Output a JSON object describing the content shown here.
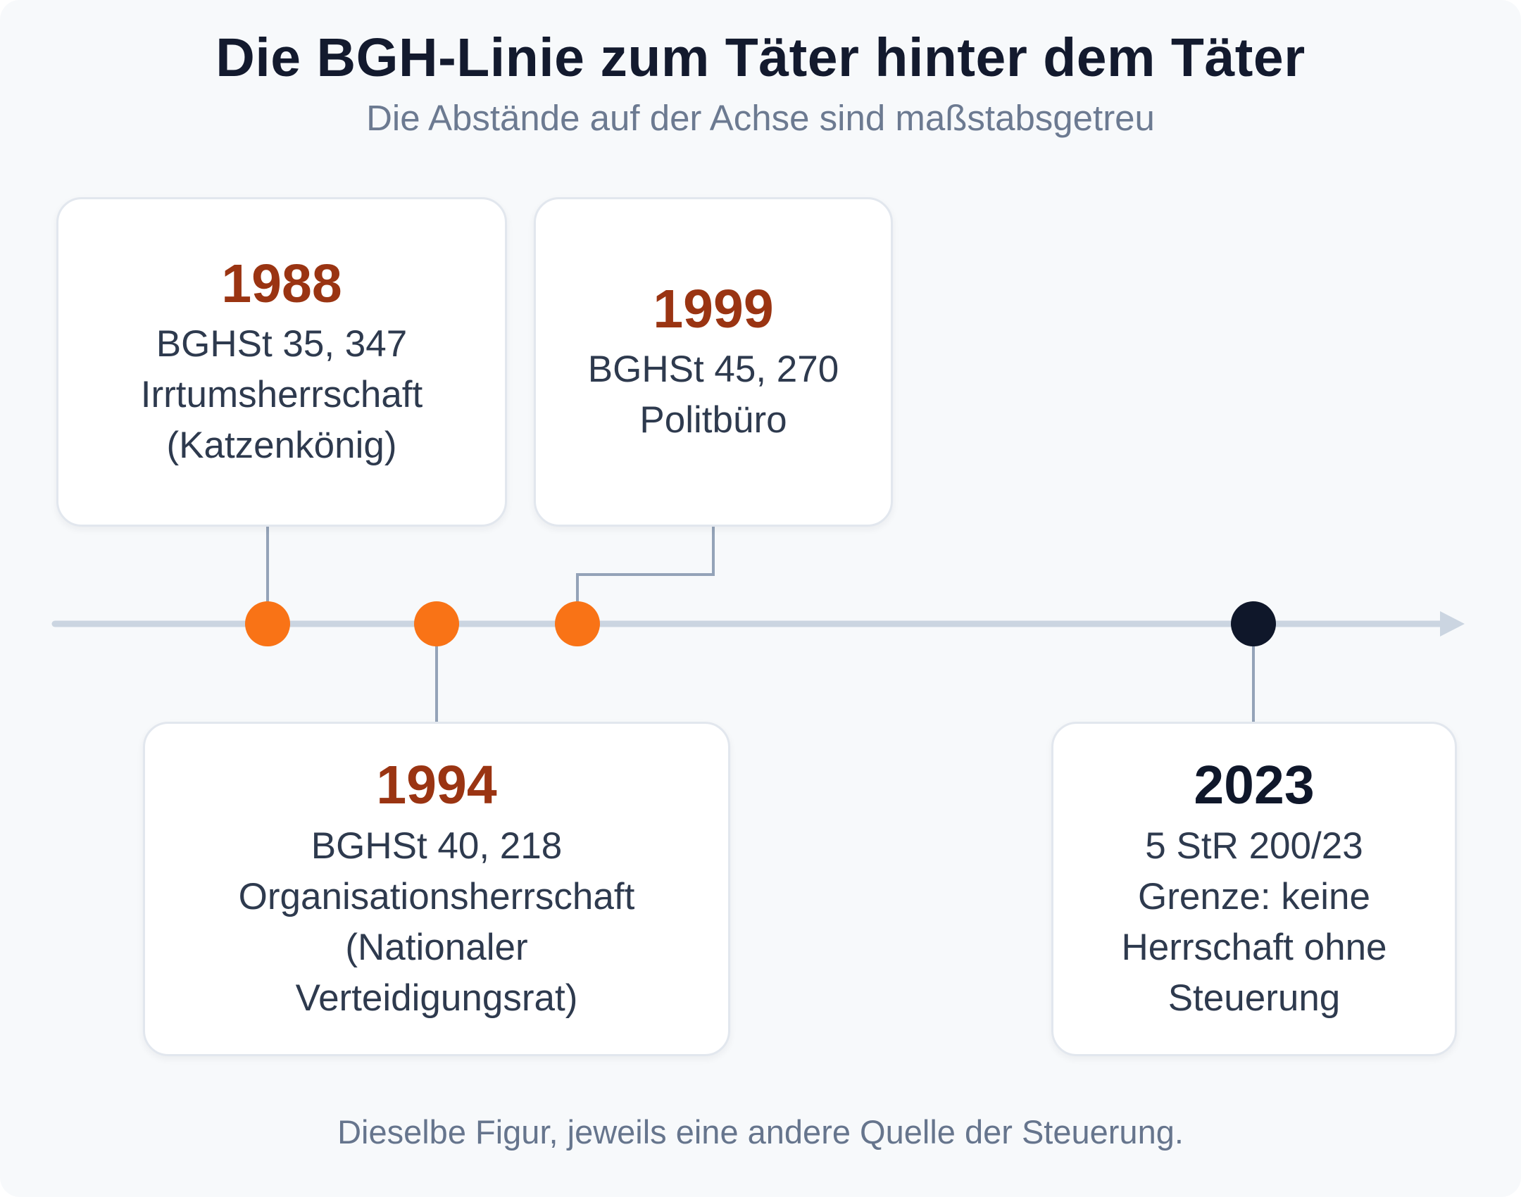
{
  "title": "Die BGH-Linie zum Täter hinter dem Täter",
  "subtitle": "Die Abstände auf der Achse sind maßstabsgetreu",
  "footer": "Dieselbe Figur, jeweils eine andere Quelle der Steuerung.",
  "colors": {
    "accent": "#f97316",
    "year_accent": "#9a3412",
    "final": "#0f172a",
    "axis": "#cbd5e1",
    "connector": "#94a3b8"
  },
  "events": [
    {
      "year": "1988",
      "lines": [
        "BGHSt 35, 347",
        "Irrtumsherrschaft",
        "(Katzenkönig)"
      ],
      "position": "above",
      "highlight": false
    },
    {
      "year": "1994",
      "lines": [
        "BGHSt 40, 218",
        "Organisationsherrschaft",
        "(Nationaler",
        "Verteidigungsrat)"
      ],
      "position": "below",
      "highlight": false
    },
    {
      "year": "1999",
      "lines": [
        "BGHSt 45, 270",
        "Politbüro"
      ],
      "position": "above",
      "highlight": false
    },
    {
      "year": "2023",
      "lines": [
        "5 StR 200/23",
        "Grenze: keine",
        "Herrschaft ohne",
        "Steuerung"
      ],
      "position": "below",
      "highlight": true
    }
  ]
}
